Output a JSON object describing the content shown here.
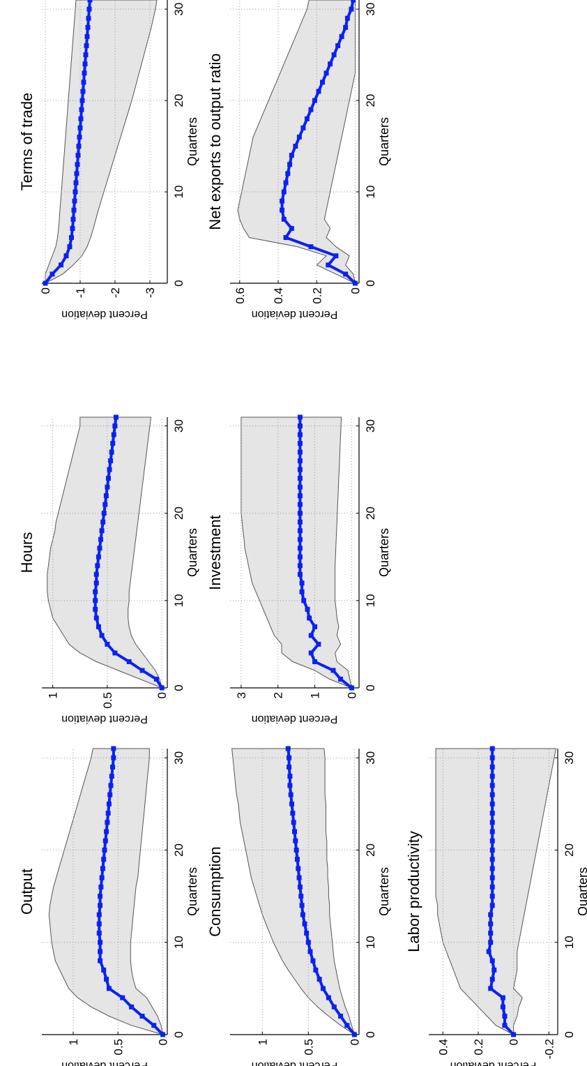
{
  "chart_data": [
    {
      "type": "area",
      "title": "Output",
      "xlabel": "Quarters",
      "ylabel": "Percent deviation",
      "xlim": [
        0,
        31
      ],
      "ylim": [
        -0.05,
        1.35
      ],
      "xticks": [
        0,
        10,
        20,
        30
      ],
      "yticks": [
        0,
        0.5,
        1
      ],
      "ytick_labels": [
        "0",
        "0.5",
        "1"
      ],
      "grid": true,
      "x": [
        0,
        1,
        2,
        3,
        4,
        5,
        6,
        7,
        8,
        9,
        10,
        11,
        12,
        13,
        14,
        15,
        16,
        17,
        18,
        19,
        20,
        21,
        22,
        23,
        24,
        25,
        26,
        27,
        28,
        29,
        30,
        31
      ],
      "series": [
        {
          "role": "median",
          "values": [
            0,
            0.1,
            0.23,
            0.35,
            0.45,
            0.6,
            0.63,
            0.66,
            0.7,
            0.7,
            0.7,
            0.71,
            0.71,
            0.71,
            0.7,
            0.7,
            0.69,
            0.68,
            0.67,
            0.66,
            0.65,
            0.64,
            0.63,
            0.62,
            0.61,
            0.6,
            0.59,
            0.58,
            0.57,
            0.56,
            0.55,
            0.55
          ]
        },
        {
          "role": "upper",
          "values": [
            0,
            0.35,
            0.6,
            0.8,
            0.95,
            1.05,
            1.1,
            1.15,
            1.2,
            1.22,
            1.24,
            1.25,
            1.26,
            1.27,
            1.26,
            1.24,
            1.22,
            1.19,
            1.16,
            1.13,
            1.1,
            1.07,
            1.04,
            1.01,
            0.98,
            0.95,
            0.92,
            0.89,
            0.86,
            0.83,
            0.8,
            0.78
          ]
        },
        {
          "role": "lower",
          "values": [
            0,
            0.02,
            0.06,
            0.12,
            0.18,
            0.3,
            0.33,
            0.35,
            0.36,
            0.36,
            0.36,
            0.35,
            0.34,
            0.33,
            0.32,
            0.31,
            0.3,
            0.28,
            0.27,
            0.26,
            0.25,
            0.24,
            0.23,
            0.22,
            0.21,
            0.2,
            0.19,
            0.18,
            0.17,
            0.16,
            0.15,
            0.15
          ]
        }
      ]
    },
    {
      "type": "area",
      "title": "Hours",
      "xlabel": "Quarters",
      "ylabel": "Percent deviation",
      "xlim": [
        0,
        31
      ],
      "ylim": [
        -0.05,
        1.1
      ],
      "xticks": [
        0,
        10,
        20,
        30
      ],
      "yticks": [
        0,
        0.5,
        1
      ],
      "ytick_labels": [
        "0",
        "0.5",
        "1"
      ],
      "grid": true,
      "x": [
        0,
        1,
        2,
        3,
        4,
        5,
        6,
        7,
        8,
        9,
        10,
        11,
        12,
        13,
        14,
        15,
        16,
        17,
        18,
        19,
        20,
        21,
        22,
        23,
        24,
        25,
        26,
        27,
        28,
        29,
        30,
        31
      ],
      "series": [
        {
          "role": "median",
          "values": [
            0,
            0.05,
            0.18,
            0.3,
            0.43,
            0.5,
            0.55,
            0.58,
            0.6,
            0.61,
            0.61,
            0.61,
            0.6,
            0.6,
            0.59,
            0.58,
            0.57,
            0.56,
            0.55,
            0.54,
            0.53,
            0.52,
            0.51,
            0.5,
            0.49,
            0.48,
            0.47,
            0.46,
            0.45,
            0.44,
            0.43,
            0.42
          ]
        },
        {
          "role": "upper",
          "values": [
            0,
            0.2,
            0.4,
            0.6,
            0.75,
            0.85,
            0.9,
            0.95,
            1.0,
            1.02,
            1.04,
            1.05,
            1.05,
            1.05,
            1.04,
            1.03,
            1.02,
            1.0,
            0.98,
            0.97,
            0.95,
            0.93,
            0.91,
            0.89,
            0.87,
            0.85,
            0.83,
            0.81,
            0.79,
            0.77,
            0.75,
            0.75
          ]
        },
        {
          "role": "lower",
          "values": [
            0,
            0.02,
            0.06,
            0.12,
            0.18,
            0.24,
            0.28,
            0.3,
            0.31,
            0.31,
            0.3,
            0.3,
            0.29,
            0.28,
            0.27,
            0.26,
            0.25,
            0.24,
            0.23,
            0.22,
            0.21,
            0.2,
            0.19,
            0.18,
            0.17,
            0.16,
            0.15,
            0.14,
            0.13,
            0.12,
            0.11,
            0.1
          ]
        }
      ]
    },
    {
      "type": "area",
      "title": "Terms of trade",
      "xlabel": "Quarters",
      "ylabel": "Percent deviation",
      "xlim": [
        0,
        31
      ],
      "ylim": [
        -3.5,
        0.1
      ],
      "xticks": [
        0,
        10,
        20,
        30
      ],
      "yticks": [
        0,
        -1,
        -2,
        -3
      ],
      "ytick_labels": [
        "0",
        "-1",
        "-2",
        "-3"
      ],
      "grid": true,
      "x": [
        0,
        1,
        2,
        3,
        4,
        5,
        6,
        7,
        8,
        9,
        10,
        11,
        12,
        13,
        14,
        15,
        16,
        17,
        18,
        19,
        20,
        21,
        22,
        23,
        24,
        25,
        26,
        27,
        28,
        29,
        30,
        31
      ],
      "series": [
        {
          "role": "median",
          "values": [
            0,
            -0.2,
            -0.45,
            -0.6,
            -0.7,
            -0.75,
            -0.78,
            -0.8,
            -0.82,
            -0.84,
            -0.86,
            -0.88,
            -0.9,
            -0.92,
            -0.94,
            -0.96,
            -0.98,
            -1.0,
            -1.02,
            -1.04,
            -1.06,
            -1.08,
            -1.1,
            -1.12,
            -1.14,
            -1.16,
            -1.18,
            -1.2,
            -1.22,
            -1.24,
            -1.26,
            -1.28
          ]
        },
        {
          "role": "upper",
          "values": [
            0,
            0,
            -0.1,
            -0.2,
            -0.3,
            -0.35,
            -0.38,
            -0.4,
            -0.42,
            -0.44,
            -0.46,
            -0.48,
            -0.5,
            -0.52,
            -0.54,
            -0.56,
            -0.58,
            -0.6,
            -0.62,
            -0.64,
            -0.66,
            -0.68,
            -0.7,
            -0.72,
            -0.74,
            -0.76,
            -0.78,
            -0.8,
            -0.82,
            -0.84,
            -0.86,
            -0.88
          ]
        },
        {
          "role": "lower",
          "values": [
            0,
            -0.5,
            -0.8,
            -1.05,
            -1.2,
            -1.3,
            -1.38,
            -1.45,
            -1.52,
            -1.6,
            -1.68,
            -1.76,
            -1.84,
            -1.92,
            -2.0,
            -2.08,
            -2.16,
            -2.24,
            -2.32,
            -2.4,
            -2.48,
            -2.55,
            -2.62,
            -2.69,
            -2.76,
            -2.83,
            -2.9,
            -2.97,
            -3.04,
            -3.1,
            -3.16,
            -3.2
          ]
        }
      ]
    },
    {
      "type": "area",
      "title": "Consumption",
      "xlabel": "Quarters",
      "ylabel": "Percent deviation",
      "xlim": [
        0,
        31
      ],
      "ylim": [
        -0.05,
        1.35
      ],
      "xticks": [
        0,
        10,
        20,
        30
      ],
      "yticks": [
        0,
        0.5,
        1
      ],
      "ytick_labels": [
        "0",
        "0.5",
        "1"
      ],
      "grid": true,
      "x": [
        0,
        1,
        2,
        3,
        4,
        5,
        6,
        7,
        8,
        9,
        10,
        11,
        12,
        13,
        14,
        15,
        16,
        17,
        18,
        19,
        20,
        21,
        22,
        23,
        24,
        25,
        26,
        27,
        28,
        29,
        30,
        31
      ],
      "series": [
        {
          "role": "median",
          "values": [
            0,
            0.08,
            0.15,
            0.22,
            0.28,
            0.34,
            0.38,
            0.42,
            0.45,
            0.48,
            0.5,
            0.52,
            0.54,
            0.56,
            0.57,
            0.58,
            0.59,
            0.6,
            0.61,
            0.62,
            0.63,
            0.64,
            0.65,
            0.66,
            0.67,
            0.68,
            0.69,
            0.7,
            0.7,
            0.71,
            0.71,
            0.72
          ]
        },
        {
          "role": "upper",
          "values": [
            0,
            0.15,
            0.28,
            0.4,
            0.5,
            0.58,
            0.65,
            0.72,
            0.78,
            0.83,
            0.88,
            0.92,
            0.96,
            1.0,
            1.03,
            1.06,
            1.09,
            1.12,
            1.14,
            1.16,
            1.18,
            1.2,
            1.22,
            1.24,
            1.25,
            1.26,
            1.28,
            1.29,
            1.3,
            1.31,
            1.32,
            1.33
          ]
        },
        {
          "role": "lower",
          "values": [
            0,
            0.03,
            0.06,
            0.1,
            0.13,
            0.16,
            0.18,
            0.2,
            0.22,
            0.23,
            0.24,
            0.25,
            0.26,
            0.27,
            0.27,
            0.28,
            0.28,
            0.29,
            0.29,
            0.3,
            0.3,
            0.3,
            0.31,
            0.31,
            0.31,
            0.31,
            0.32,
            0.32,
            0.32,
            0.32,
            0.32,
            0.33
          ]
        }
      ]
    },
    {
      "type": "area",
      "title": "Investment",
      "xlabel": "Quarters",
      "ylabel": "Percent deviation",
      "xlim": [
        0,
        31
      ],
      "ylim": [
        -0.2,
        3.3
      ],
      "xticks": [
        0,
        10,
        20,
        30
      ],
      "yticks": [
        0,
        1,
        2,
        3
      ],
      "ytick_labels": [
        "0",
        "1",
        "2",
        "3"
      ],
      "grid": true,
      "x": [
        0,
        1,
        2,
        3,
        4,
        5,
        6,
        7,
        8,
        9,
        10,
        11,
        12,
        13,
        14,
        15,
        16,
        17,
        18,
        19,
        20,
        21,
        22,
        23,
        24,
        25,
        26,
        27,
        28,
        29,
        30,
        31
      ],
      "series": [
        {
          "role": "median",
          "values": [
            0,
            0.3,
            0.5,
            1.0,
            1.1,
            0.9,
            1.1,
            1.0,
            1.15,
            1.2,
            1.3,
            1.35,
            1.35,
            1.4,
            1.4,
            1.4,
            1.4,
            1.4,
            1.4,
            1.4,
            1.4,
            1.4,
            1.4,
            1.4,
            1.4,
            1.4,
            1.4,
            1.4,
            1.4,
            1.4,
            1.4,
            1.4
          ]
        },
        {
          "role": "upper",
          "values": [
            0,
            0.6,
            1.0,
            1.6,
            1.9,
            1.9,
            2.1,
            2.2,
            2.3,
            2.4,
            2.5,
            2.6,
            2.7,
            2.75,
            2.8,
            2.85,
            2.9,
            2.92,
            2.95,
            2.97,
            3.0,
            3.0,
            3.0,
            3.0,
            3.0,
            3.0,
            3.0,
            3.0,
            3.0,
            3.0,
            3.0,
            3.0
          ]
        },
        {
          "role": "lower",
          "values": [
            0,
            0.05,
            0.1,
            0.4,
            0.45,
            0.3,
            0.4,
            0.35,
            0.4,
            0.42,
            0.45,
            0.45,
            0.45,
            0.45,
            0.45,
            0.44,
            0.43,
            0.42,
            0.41,
            0.4,
            0.39,
            0.38,
            0.37,
            0.36,
            0.35,
            0.34,
            0.33,
            0.32,
            0.31,
            0.3,
            0.29,
            0.28
          ]
        }
      ]
    },
    {
      "type": "area",
      "title": "Net exports to output ratio",
      "xlabel": "Quarters",
      "ylabel": "Percent deviation",
      "xlim": [
        0,
        31
      ],
      "ylim": [
        -0.02,
        0.65
      ],
      "xticks": [
        0,
        10,
        20,
        30
      ],
      "yticks": [
        0,
        0.2,
        0.4,
        0.6
      ],
      "ytick_labels": [
        "0",
        "0.2",
        "0.4",
        "0.6"
      ],
      "grid": true,
      "x": [
        0,
        1,
        2,
        3,
        4,
        5,
        6,
        7,
        8,
        9,
        10,
        11,
        12,
        13,
        14,
        15,
        16,
        17,
        18,
        19,
        20,
        21,
        22,
        23,
        24,
        25,
        26,
        27,
        28,
        29,
        30,
        31
      ],
      "series": [
        {
          "role": "median",
          "values": [
            0,
            0.05,
            0.14,
            0.1,
            0.23,
            0.36,
            0.33,
            0.37,
            0.38,
            0.38,
            0.37,
            0.36,
            0.35,
            0.34,
            0.33,
            0.31,
            0.29,
            0.27,
            0.25,
            0.23,
            0.21,
            0.19,
            0.17,
            0.15,
            0.13,
            0.11,
            0.09,
            0.07,
            0.05,
            0.04,
            0.02,
            0.01
          ]
        },
        {
          "role": "upper",
          "values": [
            0,
            0.1,
            0.2,
            0.15,
            0.3,
            0.55,
            0.58,
            0.6,
            0.61,
            0.6,
            0.59,
            0.58,
            0.57,
            0.56,
            0.55,
            0.54,
            0.53,
            0.51,
            0.49,
            0.47,
            0.45,
            0.43,
            0.41,
            0.39,
            0.37,
            0.35,
            0.33,
            0.31,
            0.29,
            0.27,
            0.25,
            0.24
          ]
        },
        {
          "role": "lower",
          "values": [
            0,
            0.01,
            0.05,
            0.03,
            0.1,
            0.15,
            0.13,
            0.16,
            0.15,
            0.14,
            0.13,
            0.12,
            0.11,
            0.1,
            0.09,
            0.08,
            0.07,
            0.06,
            0.05,
            0.04,
            0.03,
            0.02,
            0.01,
            0,
            0,
            0,
            0,
            0,
            0,
            0,
            0,
            0
          ]
        }
      ]
    },
    {
      "type": "area",
      "title": "Labor productivity",
      "xlabel": "Quarters",
      "ylabel": "Percent deviation",
      "xlim": [
        0,
        31
      ],
      "ylim": [
        -0.25,
        0.48
      ],
      "xticks": [
        0,
        10,
        20,
        30
      ],
      "yticks": [
        -0.2,
        0,
        0.2,
        0.4
      ],
      "ytick_labels": [
        "-0.2",
        "0",
        "0.2",
        "0.4"
      ],
      "grid": true,
      "x": [
        0,
        1,
        2,
        3,
        4,
        5,
        6,
        7,
        8,
        9,
        10,
        11,
        12,
        13,
        14,
        15,
        16,
        17,
        18,
        19,
        20,
        21,
        22,
        23,
        24,
        25,
        26,
        27,
        28,
        29,
        30,
        31
      ],
      "series": [
        {
          "role": "median",
          "values": [
            0,
            0.05,
            0.05,
            0.06,
            0.06,
            0.13,
            0.12,
            0.11,
            0.12,
            0.14,
            0.13,
            0.13,
            0.13,
            0.13,
            0.12,
            0.12,
            0.12,
            0.12,
            0.12,
            0.12,
            0.12,
            0.12,
            0.12,
            0.12,
            0.12,
            0.12,
            0.12,
            0.12,
            0.12,
            0.12,
            0.12,
            0.12
          ]
        },
        {
          "role": "upper",
          "values": [
            0,
            0.1,
            0.15,
            0.2,
            0.25,
            0.3,
            0.32,
            0.34,
            0.36,
            0.38,
            0.4,
            0.41,
            0.42,
            0.43,
            0.43,
            0.44,
            0.44,
            0.44,
            0.44,
            0.44,
            0.44,
            0.44,
            0.44,
            0.44,
            0.44,
            0.44,
            0.44,
            0.44,
            0.44,
            0.44,
            0.44,
            0.44
          ]
        },
        {
          "role": "lower",
          "values": [
            0,
            0,
            -0.02,
            -0.03,
            -0.05,
            0,
            -0.01,
            -0.02,
            -0.02,
            -0.02,
            -0.03,
            -0.04,
            -0.05,
            -0.06,
            -0.07,
            -0.08,
            -0.09,
            -0.1,
            -0.11,
            -0.12,
            -0.13,
            -0.14,
            -0.15,
            -0.16,
            -0.17,
            -0.18,
            -0.19,
            -0.2,
            -0.21,
            -0.22,
            -0.23,
            -0.24
          ]
        }
      ]
    }
  ]
}
